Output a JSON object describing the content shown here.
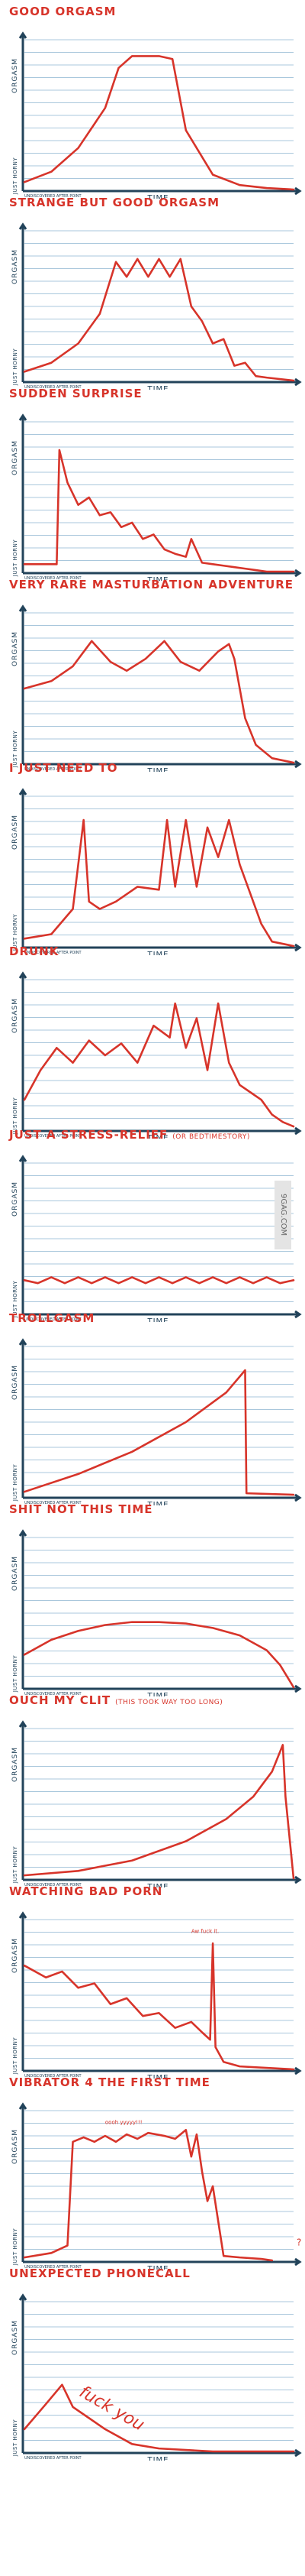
{
  "axes": {
    "ylabel": "ORGASM",
    "ylabel_low": "JUST HORNY",
    "xlabel": "TIME",
    "corner_label": "UNDISCOVERED AFTER POINT"
  },
  "watermark": "9GAG.COM",
  "colors": {
    "curve": "#d7342a",
    "axis": "#22435a",
    "grid": "#a9c7dc"
  },
  "chart_data": [
    {
      "type": "line",
      "title": "GOOD ORGASM",
      "xlabel": "TIME",
      "ylabel": "ORGASM",
      "ylim": [
        0,
        100
      ],
      "xlim": [
        0,
        100
      ],
      "series": [
        {
          "x": [
            0,
            10,
            20,
            30,
            35,
            40,
            45,
            50,
            55,
            60,
            70,
            80,
            90,
            100
          ],
          "y": [
            5,
            12,
            28,
            55,
            82,
            90,
            90,
            90,
            88,
            40,
            10,
            3,
            1,
            0
          ]
        }
      ]
    },
    {
      "type": "line",
      "title": "STRANGE BUT GOOD ORGASM",
      "xlabel": "TIME",
      "ylabel": "ORGASM",
      "ylim": [
        0,
        100
      ],
      "xlim": [
        0,
        100
      ],
      "series": [
        {
          "x": [
            0,
            10,
            20,
            28,
            34,
            38,
            42,
            46,
            50,
            54,
            58,
            62,
            66,
            70,
            74,
            78,
            82,
            86,
            90,
            100
          ],
          "y": [
            6,
            12,
            25,
            45,
            80,
            70,
            82,
            70,
            82,
            70,
            82,
            50,
            40,
            25,
            28,
            10,
            12,
            3,
            2,
            0
          ]
        }
      ]
    },
    {
      "type": "line",
      "title": "SUDDEN SURPRISE",
      "xlabel": "TIME",
      "ylabel": "ORGASM",
      "ylim": [
        0,
        100
      ],
      "xlim": [
        0,
        100
      ],
      "series": [
        {
          "x": [
            0,
            12,
            13,
            16,
            20,
            24,
            28,
            32,
            36,
            40,
            44,
            48,
            52,
            56,
            60,
            62,
            66,
            70,
            74,
            78,
            82,
            86,
            90,
            100
          ],
          "y": [
            5,
            5,
            82,
            60,
            45,
            50,
            38,
            40,
            30,
            33,
            22,
            25,
            15,
            12,
            10,
            22,
            6,
            5,
            4,
            3,
            2,
            1,
            0,
            0
          ]
        }
      ]
    },
    {
      "type": "line",
      "title": "VERY RARE MASTURBATION ADVENTURE",
      "xlabel": "TIME",
      "ylabel": "ORGASM",
      "ylim": [
        0,
        100
      ],
      "xlim": [
        0,
        100
      ],
      "series": [
        {
          "x": [
            0,
            10,
            18,
            25,
            32,
            38,
            45,
            52,
            58,
            65,
            72,
            76,
            78,
            82,
            86,
            92,
            100
          ],
          "y": [
            50,
            55,
            65,
            82,
            68,
            62,
            70,
            82,
            68,
            62,
            75,
            80,
            70,
            30,
            12,
            3,
            0
          ]
        }
      ]
    },
    {
      "type": "line",
      "title": "I JUST NEED TO",
      "xlabel": "TIME",
      "ylabel": "ORGASM",
      "ylim": [
        0,
        100
      ],
      "xlim": [
        0,
        100
      ],
      "series": [
        {
          "x": [
            0,
            10,
            18,
            22,
            24,
            28,
            34,
            42,
            50,
            53,
            56,
            60,
            64,
            68,
            72,
            76,
            80,
            84,
            88,
            92,
            100
          ],
          "y": [
            5,
            8,
            25,
            85,
            30,
            25,
            30,
            40,
            38,
            85,
            40,
            85,
            40,
            80,
            60,
            85,
            55,
            35,
            15,
            3,
            0
          ]
        }
      ]
    },
    {
      "type": "line",
      "title": "DRUNK",
      "xlabel": "TIME",
      "ylabel": "ORGASM",
      "ylim": [
        0,
        100
      ],
      "xlim": [
        0,
        100
      ],
      "series": [
        {
          "x": [
            0,
            6,
            12,
            18,
            24,
            30,
            36,
            42,
            48,
            54,
            56,
            60,
            64,
            68,
            72,
            76,
            80,
            84,
            88,
            92,
            96,
            100
          ],
          "y": [
            20,
            40,
            55,
            45,
            60,
            50,
            58,
            45,
            70,
            62,
            85,
            55,
            75,
            40,
            85,
            45,
            30,
            25,
            20,
            10,
            5,
            2
          ]
        }
      ]
    },
    {
      "type": "line",
      "title": "JUST A STRESS-RELIEF",
      "subtitle": "(OR BEDTIMESTORY)",
      "xlabel": "TIME",
      "ylabel": "ORGASM",
      "ylim": [
        0,
        100
      ],
      "xlim": [
        0,
        100
      ],
      "series": [
        {
          "x": [
            0,
            5,
            10,
            15,
            20,
            25,
            30,
            35,
            40,
            45,
            50,
            55,
            60,
            65,
            70,
            75,
            80,
            85,
            90,
            95,
            100
          ],
          "y": [
            22,
            20,
            24,
            20,
            24,
            20,
            24,
            20,
            24,
            20,
            24,
            20,
            24,
            20,
            24,
            20,
            24,
            20,
            24,
            20,
            22
          ]
        }
      ]
    },
    {
      "type": "line",
      "title": "TROLLGASM",
      "xlabel": "TIME",
      "ylabel": "ORGASM",
      "ylim": [
        0,
        100
      ],
      "xlim": [
        0,
        100
      ],
      "series": [
        {
          "x": [
            0,
            20,
            40,
            60,
            75,
            82,
            82.5,
            100
          ],
          "y": [
            3,
            15,
            30,
            50,
            70,
            85,
            2,
            1
          ]
        }
      ]
    },
    {
      "type": "line",
      "title": "SHIT NOT THIS TIME",
      "xlabel": "TIME",
      "ylabel": "ORGASM",
      "ylim": [
        0,
        100
      ],
      "xlim": [
        0,
        100
      ],
      "series": [
        {
          "x": [
            0,
            10,
            20,
            30,
            40,
            50,
            60,
            70,
            80,
            90,
            95,
            100
          ],
          "y": [
            22,
            32,
            38,
            42,
            44,
            44,
            43,
            40,
            35,
            25,
            15,
            0
          ]
        }
      ]
    },
    {
      "type": "line",
      "title": "OUCH MY CLIT",
      "subtitle": "(THIS TOOK WAY TOO LONG)",
      "xlabel": "TIME",
      "ylabel": "ORGASM",
      "ylim": [
        0,
        100
      ],
      "xlim": [
        0,
        100
      ],
      "series": [
        {
          "x": [
            0,
            20,
            40,
            60,
            75,
            85,
            92,
            96,
            97,
            100
          ],
          "y": [
            2,
            5,
            12,
            25,
            40,
            55,
            72,
            90,
            55,
            0
          ]
        }
      ]
    },
    {
      "type": "line",
      "title": "WATCHING BAD PORN",
      "xlabel": "TIME",
      "ylabel": "ORGASM",
      "ylim": [
        0,
        100
      ],
      "xlim": [
        0,
        100
      ],
      "series": [
        {
          "x": [
            0,
            8,
            14,
            20,
            26,
            32,
            38,
            44,
            50,
            56,
            62,
            66,
            69,
            70,
            71,
            74,
            80,
            90,
            100
          ],
          "y": [
            70,
            62,
            66,
            55,
            58,
            44,
            48,
            36,
            38,
            28,
            32,
            25,
            20,
            85,
            15,
            5,
            2,
            1,
            0
          ]
        }
      ]
    },
    {
      "type": "line",
      "title": "VIBRATOR 4 THE FIRST TIME",
      "xlabel": "TIME",
      "ylabel": "ORGASM",
      "ylim": [
        0,
        100
      ],
      "xlim": [
        0,
        100
      ],
      "series": [
        {
          "x": [
            0,
            10,
            16,
            18,
            22,
            26,
            30,
            34,
            38,
            42,
            46,
            52,
            56,
            60,
            62,
            64,
            66,
            68,
            70,
            74,
            80,
            88,
            92
          ],
          "y": [
            2,
            5,
            10,
            80,
            83,
            80,
            84,
            80,
            85,
            82,
            86,
            84,
            82,
            88,
            70,
            85,
            60,
            40,
            50,
            3,
            2,
            1,
            0
          ]
        }
      ]
    },
    {
      "type": "line",
      "title": "UNEXPECTED PHONECALL",
      "xlabel": "TIME",
      "ylabel": "ORGASM",
      "ylim": [
        0,
        100
      ],
      "xlim": [
        0,
        100
      ],
      "series": [
        {
          "x": [
            0,
            8,
            14,
            18,
            22,
            30,
            40,
            50,
            60,
            70,
            80,
            90,
            100
          ],
          "y": [
            15,
            32,
            45,
            30,
            25,
            15,
            5,
            2,
            1,
            0,
            0,
            0,
            0
          ]
        }
      ]
    }
  ],
  "annotations": {
    "bad_porn_peak": "Aw fuck it.",
    "vibrator_peak": "oooh yyyyy!!!",
    "vibrator_question": "?",
    "phonecall_text": "fuck you"
  }
}
